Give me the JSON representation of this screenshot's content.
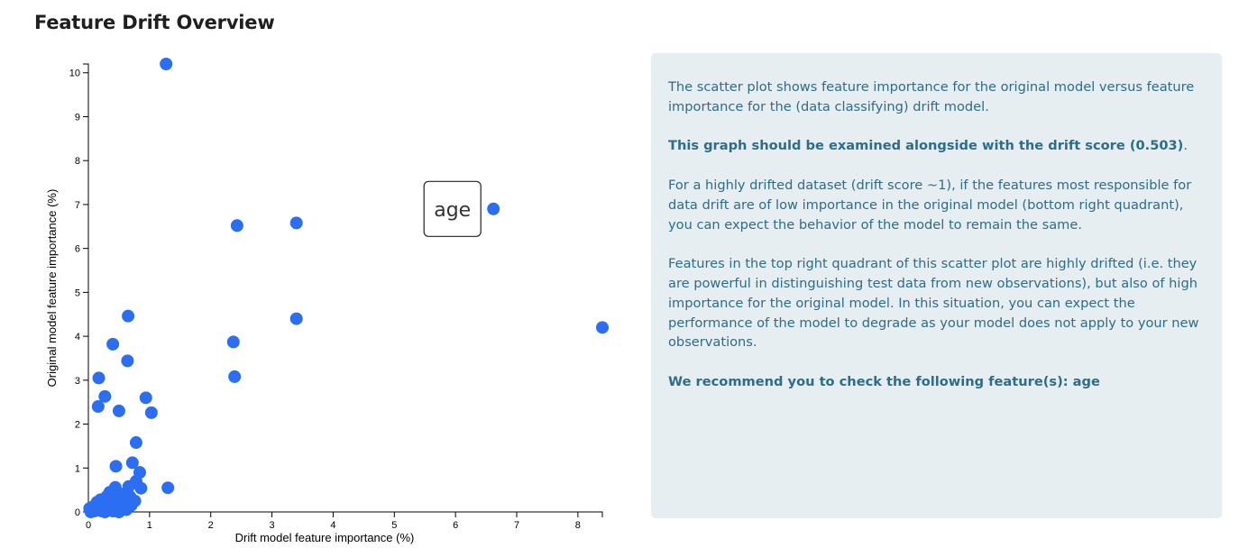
{
  "page": {
    "title": "Feature Drift Overview"
  },
  "chart_data": {
    "type": "scatter",
    "title": "",
    "xlabel": "Drift model feature importance (%)",
    "ylabel": "Original model feature importance (%)",
    "xlim": [
      0,
      8.4
    ],
    "ylim": [
      0,
      10.2
    ],
    "x_ticks": [
      "0",
      "1",
      "2",
      "3",
      "4",
      "5",
      "6",
      "7",
      "8"
    ],
    "y_ticks": [
      "0",
      "1",
      "2",
      "3",
      "4",
      "5",
      "6",
      "7",
      "8",
      "9",
      "10"
    ],
    "grid": false,
    "points": [
      {
        "x": 1.27,
        "y": 10.2
      },
      {
        "x": 8.4,
        "y": 4.2
      },
      {
        "x": 6.62,
        "y": 6.9
      },
      {
        "x": 3.4,
        "y": 6.58
      },
      {
        "x": 3.4,
        "y": 4.4
      },
      {
        "x": 2.43,
        "y": 6.52
      },
      {
        "x": 2.37,
        "y": 3.87
      },
      {
        "x": 2.39,
        "y": 3.08
      },
      {
        "x": 0.65,
        "y": 4.46
      },
      {
        "x": 0.4,
        "y": 3.82
      },
      {
        "x": 0.64,
        "y": 3.44
      },
      {
        "x": 0.17,
        "y": 3.05
      },
      {
        "x": 0.27,
        "y": 2.63
      },
      {
        "x": 0.16,
        "y": 2.4
      },
      {
        "x": 0.5,
        "y": 2.3
      },
      {
        "x": 0.94,
        "y": 2.6
      },
      {
        "x": 1.03,
        "y": 2.26
      },
      {
        "x": 0.78,
        "y": 1.58
      },
      {
        "x": 0.72,
        "y": 1.12
      },
      {
        "x": 0.84,
        "y": 0.9
      },
      {
        "x": 0.45,
        "y": 1.04
      },
      {
        "x": 1.3,
        "y": 0.55
      },
      {
        "x": 0.86,
        "y": 0.54
      },
      {
        "x": 0.78,
        "y": 0.7
      },
      {
        "x": 0.76,
        "y": 0.25
      },
      {
        "x": 0.66,
        "y": 0.58
      },
      {
        "x": 0.6,
        "y": 0.42
      },
      {
        "x": 0.58,
        "y": 0.3
      },
      {
        "x": 0.55,
        "y": 0.15
      },
      {
        "x": 0.52,
        "y": 0.05
      },
      {
        "x": 0.44,
        "y": 0.56
      },
      {
        "x": 0.46,
        "y": 0.4
      },
      {
        "x": 0.48,
        "y": 0.25
      },
      {
        "x": 0.42,
        "y": 0.12
      },
      {
        "x": 0.38,
        "y": 0.3
      },
      {
        "x": 0.35,
        "y": 0.18
      },
      {
        "x": 0.33,
        "y": 0.05
      },
      {
        "x": 0.3,
        "y": 0.35
      },
      {
        "x": 0.28,
        "y": 0.2
      },
      {
        "x": 0.25,
        "y": 0.1
      },
      {
        "x": 0.22,
        "y": 0.02
      },
      {
        "x": 0.2,
        "y": 0.28
      },
      {
        "x": 0.18,
        "y": 0.15
      },
      {
        "x": 0.15,
        "y": 0.05
      },
      {
        "x": 0.12,
        "y": 0.1
      },
      {
        "x": 0.1,
        "y": 0.02
      },
      {
        "x": 0.08,
        "y": 0.12
      },
      {
        "x": 0.06,
        "y": 0.05
      },
      {
        "x": 0.04,
        "y": 0.0
      },
      {
        "x": 0.02,
        "y": 0.08
      },
      {
        "x": 0.35,
        "y": 0.45
      },
      {
        "x": 0.52,
        "y": 0.38
      },
      {
        "x": 0.6,
        "y": 0.2
      },
      {
        "x": 0.68,
        "y": 0.35
      },
      {
        "x": 0.7,
        "y": 0.15
      },
      {
        "x": 0.27,
        "y": 0.0
      },
      {
        "x": 0.4,
        "y": 0.02
      },
      {
        "x": 0.5,
        "y": 0.0
      },
      {
        "x": 0.14,
        "y": 0.22
      },
      {
        "x": 0.62,
        "y": 0.05
      }
    ],
    "highlight": {
      "label": "age",
      "x": 6.62,
      "y": 6.9
    },
    "point_color": "#2b6ef2"
  },
  "info_panel": {
    "paragraphs": [
      {
        "text": "The scatter plot shows feature importance for the original model versus feature importance for the (data classifying) drift model."
      },
      {
        "bold": "This graph should be examined alongside with the drift score (0.503)",
        "text": "."
      },
      {
        "text": "For a highly drifted dataset (drift score ~1), if the features most responsible for data drift are of low importance in the original model (bottom right quadrant), you can expect the behavior of the model to remain the same."
      },
      {
        "text": "Features in the top right quadrant of this scatter plot are highly drifted (i.e. they are powerful in distinguishing test data from new observations), but also of high importance for the original model. In this situation, you can expect the performance of the model to degrade as your model does not apply to your new observations."
      },
      {
        "bold": "We recommend you to check the following feature(s): age"
      }
    ],
    "text_color": "#2d6c8a",
    "background": "#e6eef2"
  }
}
